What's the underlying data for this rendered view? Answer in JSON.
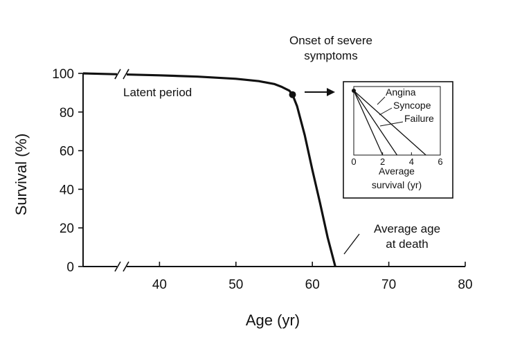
{
  "chart_data": {
    "type": "line",
    "xlabel": "Age (yr)",
    "ylabel": "Survival (%)",
    "xlim": [
      30,
      80
    ],
    "ylim": [
      0,
      100
    ],
    "x_ticks": [
      40,
      50,
      60,
      70,
      80
    ],
    "y_ticks": [
      0,
      20,
      40,
      60,
      80,
      100
    ],
    "axis_break": true,
    "grid": false,
    "series": [
      {
        "x": [
          30,
          40,
          45,
          50,
          53,
          55,
          56,
          57,
          57.4,
          58,
          59,
          60,
          61,
          62,
          63
        ],
        "y": [
          100,
          99,
          98.3,
          97.2,
          96,
          94.5,
          93,
          91,
          89,
          83,
          68,
          50,
          33,
          15,
          0
        ]
      }
    ],
    "annotations": {
      "latent": "Latent period",
      "onset_line1": "Onset of severe",
      "onset_line2": "symptoms",
      "death_line1": "Average age",
      "death_line2": "at death"
    },
    "onset_point": {
      "x": 57.4,
      "y": 89
    },
    "inset": {
      "type": "line",
      "xlabel_line1": "Average",
      "xlabel_line2": "survival (yr)",
      "xlim": [
        0,
        6
      ],
      "x_ticks": [
        0,
        2,
        4,
        6
      ],
      "start_value": 100,
      "series": [
        {
          "name": "Angina",
          "end_x": 5
        },
        {
          "name": "Syncope",
          "end_x": 3
        },
        {
          "name": "Failure",
          "end_x": 2
        }
      ]
    }
  }
}
